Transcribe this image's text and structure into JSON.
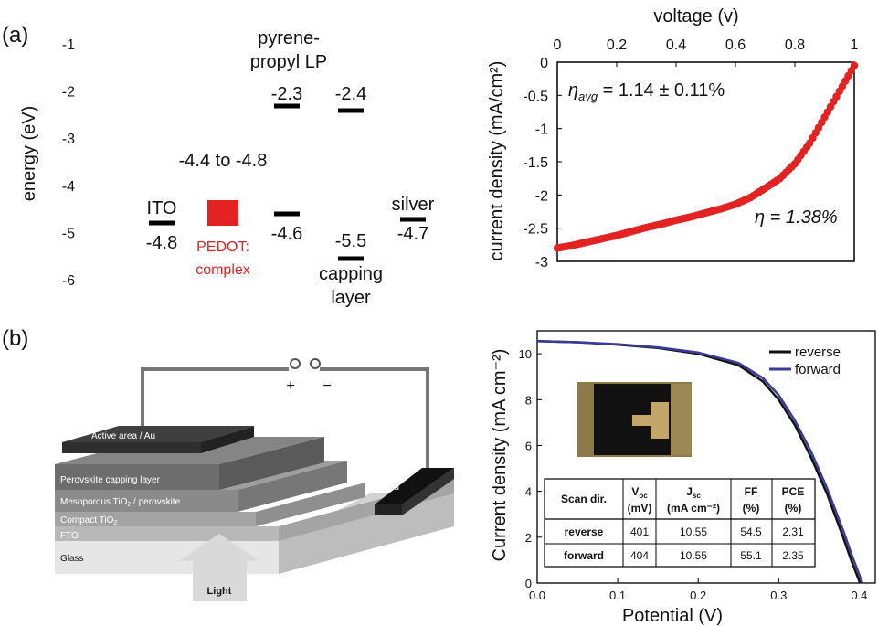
{
  "panel_labels": {
    "a": "(a)",
    "b": "(b)"
  },
  "colors": {
    "red": "#e32222",
    "reverse": "#111111",
    "forward": "#3a3a9a"
  },
  "chart_data": [
    {
      "type": "energy-level-diagram",
      "ylabel": "energy (eV)",
      "ylim": [
        -6,
        -1
      ],
      "yticks": [
        "-1",
        "-2",
        "-3",
        "-4",
        "-5",
        "-6"
      ],
      "levels": [
        {
          "name": "ITO",
          "value": -4.8,
          "label": "-4.8"
        },
        {
          "name": "PEDOT: complex",
          "value_range": [
            -4.4,
            -4.8
          ],
          "label": "-4.4 to -4.8"
        },
        {
          "name": "pyrene-propyl LP",
          "lumo": -2.3,
          "homo": -4.6,
          "lumo_label": "-2.3",
          "homo_label": "-4.6"
        },
        {
          "name": "capping layer",
          "lumo": -2.4,
          "homo": -5.5,
          "lumo_label": "-2.4",
          "homo_label": "-5.5"
        },
        {
          "name": "silver",
          "value": -4.7,
          "label": "-4.7"
        }
      ],
      "texts": {
        "ito": "ITO",
        "pedot_line1": "PEDOT:",
        "pedot_line2": "complex",
        "pedot_range": "-4.4 to -4.8",
        "pyrene_line1": "pyrene-",
        "pyrene_line2": "propyl LP",
        "capping_line1": "capping",
        "capping_line2": "layer",
        "silver": "silver",
        "v_ito": "-4.8",
        "v_pyr_lumo": "-2.3",
        "v_pyr_homo": "-4.6",
        "v_cap_lumo": "-2.4",
        "v_cap_homo": "-5.5",
        "v_silver": "-4.7"
      }
    },
    {
      "type": "scatter",
      "xlabel": "voltage (v)",
      "ylabel": "current density (mA/cm²)",
      "xlim": [
        0,
        1
      ],
      "ylim": [
        -3,
        0
      ],
      "xticks": [
        "0",
        "0.2",
        "0.4",
        "0.6",
        "0.8",
        "1"
      ],
      "yticks": [
        "0",
        "-0.5",
        "-1",
        "-1.5",
        "-2",
        "-2.5",
        "-3"
      ],
      "annotation_avg_sym": "η",
      "annotation_avg_sub": "avg",
      "annotation_avg_text": " = 1.14 ± 0.11%",
      "annotation_best": "η = 1.38%",
      "series": [
        {
          "x": [
            0.0,
            0.05,
            0.1,
            0.15,
            0.2,
            0.25,
            0.3,
            0.35,
            0.4,
            0.45,
            0.5,
            0.55,
            0.6,
            0.65,
            0.7,
            0.75,
            0.8,
            0.85,
            0.9,
            0.95,
            1.0
          ],
          "y": [
            -2.8,
            -2.76,
            -2.71,
            -2.66,
            -2.61,
            -2.55,
            -2.49,
            -2.44,
            -2.38,
            -2.33,
            -2.27,
            -2.21,
            -2.14,
            -2.04,
            -1.9,
            -1.75,
            -1.53,
            -1.22,
            -0.83,
            -0.44,
            -0.05
          ]
        }
      ]
    },
    {
      "type": "line",
      "xlabel": "Potential (V)",
      "ylabel": "Current density (mA cm⁻²)",
      "xlim": [
        0,
        0.42
      ],
      "ylim": [
        0,
        11
      ],
      "xticks": [
        "0.0",
        "0.1",
        "0.2",
        "0.3",
        "0.4"
      ],
      "yticks": [
        "0",
        "2",
        "4",
        "6",
        "8",
        "10"
      ],
      "series": [
        {
          "name": "reverse",
          "x": [
            0,
            0.05,
            0.1,
            0.15,
            0.2,
            0.25,
            0.28,
            0.3,
            0.32,
            0.34,
            0.36,
            0.38,
            0.39,
            0.401
          ],
          "y": [
            10.55,
            10.5,
            10.4,
            10.25,
            10.0,
            9.5,
            8.8,
            8.0,
            6.9,
            5.5,
            3.9,
            2.0,
            1.0,
            0
          ]
        },
        {
          "name": "forward",
          "x": [
            0,
            0.05,
            0.1,
            0.15,
            0.2,
            0.25,
            0.28,
            0.3,
            0.32,
            0.34,
            0.36,
            0.38,
            0.39,
            0.404
          ],
          "y": [
            10.55,
            10.5,
            10.42,
            10.28,
            10.05,
            9.6,
            8.95,
            8.2,
            7.1,
            5.75,
            4.15,
            2.3,
            1.3,
            0
          ]
        }
      ],
      "legend_position": "top-right",
      "table": {
        "headers": [
          {
            "main": "Scan dir.",
            "sub": "",
            "l2": ""
          },
          {
            "main": "V",
            "sub": "oc",
            "l2": "(mV)"
          },
          {
            "main": "J",
            "sub": "sc",
            "l2": "(mA cm⁻²)"
          },
          {
            "main": "FF",
            "sub": "",
            "l2": "(%)"
          },
          {
            "main": "PCE",
            "sub": "",
            "l2": "(%)"
          }
        ],
        "rows": [
          [
            "reverse",
            "401",
            "10.55",
            "54.5",
            "2.31"
          ],
          [
            "forward",
            "404",
            "10.55",
            "55.1",
            "2.35"
          ]
        ]
      }
    }
  ],
  "device": {
    "active_area": "Active area / Au",
    "capping": "Perovskite capping layer",
    "meso_pre": "Mesoporous TiO",
    "meso_sub": "2",
    "meso_post": " / perovskite",
    "compact_pre": "Compact TiO",
    "compact_sub": "2",
    "fto": "FTO",
    "glass": "Glass",
    "gold": "gold",
    "light": "Light",
    "plus": "+",
    "minus": "−"
  }
}
